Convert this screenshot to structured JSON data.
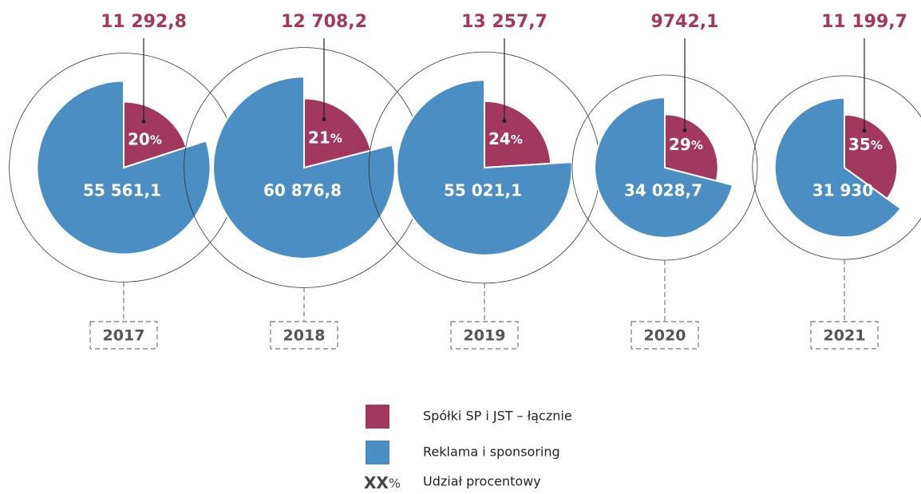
{
  "chart_data": [
    {
      "type": "pie",
      "title": "2017",
      "categories": [
        "Spółki SP i JST – łącznie",
        "Reklama i sponsoring"
      ],
      "colors": [
        "#a3385f",
        "#4a8ec3"
      ],
      "values": [
        11292.8,
        55561.1
      ],
      "value_labels": [
        "11 292,8",
        "55 561,1"
      ],
      "share": 20
    },
    {
      "type": "pie",
      "title": "2018",
      "categories": [
        "Spółki SP i JST – łącznie",
        "Reklama i sponsoring"
      ],
      "colors": [
        "#a3385f",
        "#4a8ec3"
      ],
      "values": [
        12708.2,
        60876.8
      ],
      "value_labels": [
        "12 708,2",
        "60 876,8"
      ],
      "share": 21
    },
    {
      "type": "pie",
      "title": "2019",
      "categories": [
        "Spółki SP i JST – łącznie",
        "Reklama i sponsoring"
      ],
      "colors": [
        "#a3385f",
        "#4a8ec3"
      ],
      "values": [
        13257.7,
        55021.1
      ],
      "value_labels": [
        "13 257,7",
        "55 021,1"
      ],
      "share": 24
    },
    {
      "type": "pie",
      "title": "2020",
      "categories": [
        "Spółki SP i JST – łącznie",
        "Reklama i sponsoring"
      ],
      "colors": [
        "#a3385f",
        "#4a8ec3"
      ],
      "values": [
        9742.1,
        34028.7
      ],
      "value_labels": [
        "9742,1",
        "34 028,7"
      ],
      "share": 29
    },
    {
      "type": "pie",
      "title": "2021",
      "categories": [
        "Spółki SP i JST – łącznie",
        "Reklama i sponsoring"
      ],
      "colors": [
        "#a3385f",
        "#4a8ec3"
      ],
      "values": [
        11199.7,
        31930
      ],
      "value_labels": [
        "11 199,7",
        "31 930"
      ],
      "share": 35
    }
  ],
  "legend": {
    "items": [
      {
        "name": "Spółki SP i JST – łącznie",
        "color": "#a3385f"
      },
      {
        "name": "Reklama i sponsoring",
        "color": "#4a8ec3"
      }
    ],
    "sample": "XX",
    "unit": "%",
    "sample_name": "Udział procentowy"
  }
}
